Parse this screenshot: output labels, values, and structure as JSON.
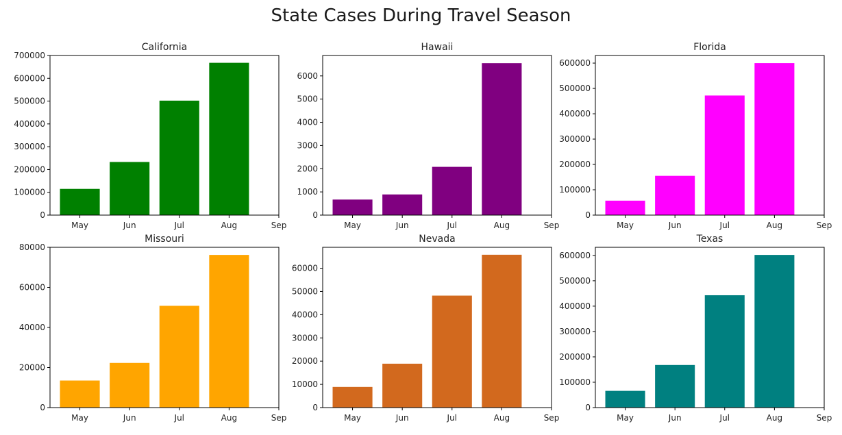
{
  "figure": {
    "title": "State Cases During Travel Season"
  },
  "chart_data": [
    {
      "type": "bar",
      "title": "California",
      "categories": [
        "May",
        "Jun",
        "Jul",
        "Aug",
        "Sep"
      ],
      "values": [
        115000,
        233000,
        502000,
        668000,
        null
      ],
      "color": "#008000",
      "ylim": [
        0,
        700000
      ],
      "yticks": [
        0,
        100000,
        200000,
        300000,
        400000,
        500000,
        600000,
        700000
      ]
    },
    {
      "type": "bar",
      "title": "Hawaii",
      "categories": [
        "May",
        "Jun",
        "Jul",
        "Aug",
        "Sep"
      ],
      "values": [
        670,
        890,
        2080,
        6550,
        null
      ],
      "color": "#800080",
      "ylim": [
        0,
        6880
      ],
      "yticks": [
        0,
        1000,
        2000,
        3000,
        4000,
        5000,
        6000
      ]
    },
    {
      "type": "bar",
      "title": "Florida",
      "categories": [
        "May",
        "Jun",
        "Jul",
        "Aug",
        "Sep"
      ],
      "values": [
        57000,
        155000,
        472000,
        600000,
        null
      ],
      "color": "#FF00FF",
      "ylim": [
        0,
        630000
      ],
      "yticks": [
        0,
        100000,
        200000,
        300000,
        400000,
        500000,
        600000
      ]
    },
    {
      "type": "bar",
      "title": "Missouri",
      "categories": [
        "May",
        "Jun",
        "Jul",
        "Aug",
        "Sep"
      ],
      "values": [
        13500,
        22300,
        50800,
        76200,
        null
      ],
      "color": "#FFA500",
      "ylim": [
        0,
        80000
      ],
      "yticks": [
        0,
        20000,
        40000,
        60000,
        80000
      ]
    },
    {
      "type": "bar",
      "title": "Nevada",
      "categories": [
        "May",
        "Jun",
        "Jul",
        "Aug",
        "Sep"
      ],
      "values": [
        8900,
        18900,
        48200,
        65800,
        null
      ],
      "color": "#D2691E",
      "ylim": [
        0,
        69000
      ],
      "yticks": [
        0,
        10000,
        20000,
        30000,
        40000,
        50000,
        60000
      ]
    },
    {
      "type": "bar",
      "title": "Texas",
      "categories": [
        "May",
        "Jun",
        "Jul",
        "Aug",
        "Sep"
      ],
      "values": [
        66000,
        168000,
        443000,
        602000,
        null
      ],
      "color": "#008080",
      "ylim": [
        0,
        632000
      ],
      "yticks": [
        0,
        100000,
        200000,
        300000,
        400000,
        500000,
        600000
      ]
    }
  ]
}
